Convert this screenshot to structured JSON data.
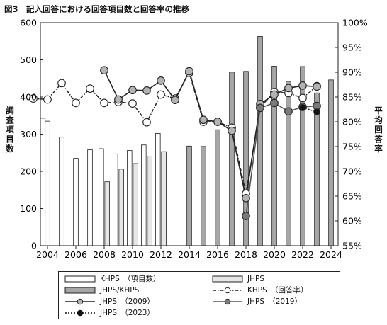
{
  "figure_title": "図3　記入回答における回答項目数と回答率の推移",
  "chart_data": {
    "type": "bar",
    "title": "図3　記入回答における回答項目数と回答率の推移",
    "ylabel_left": "調査項目数",
    "ylabel_right": "平均回答率",
    "ylim_left": [
      0,
      600
    ],
    "ylim_right": [
      55,
      100
    ],
    "xlim": [
      2003.5,
      2024.5
    ],
    "x_ticks": [
      2004,
      2006,
      2008,
      2010,
      2012,
      2014,
      2016,
      2018,
      2020,
      2022,
      2024
    ],
    "y_left_ticks": [
      0,
      100,
      200,
      300,
      400,
      500,
      600
    ],
    "y_right_ticks": [
      "55%",
      "60%",
      "65%",
      "70%",
      "75%",
      "80%",
      "85%",
      "90%",
      "95%",
      "100%"
    ],
    "grid": false,
    "legend_placement": "bottom",
    "bar_series": [
      {
        "name": "KHPS　（項目数）",
        "color": "#ffffff",
        "points": [
          [
            2003,
            343
          ],
          [
            2004,
            335
          ],
          [
            2005,
            292
          ],
          [
            2006,
            235
          ],
          [
            2007,
            258
          ],
          [
            2008,
            261
          ],
          [
            2009,
            247
          ],
          [
            2010,
            256
          ],
          [
            2011,
            271
          ],
          [
            2012,
            302
          ]
        ]
      },
      {
        "name": "JHPS",
        "color": "#e6e6e6",
        "points": [
          [
            2008,
            172
          ],
          [
            2009,
            206
          ],
          [
            2010,
            221
          ],
          [
            2011,
            241
          ],
          [
            2012,
            253
          ]
        ]
      },
      {
        "name": "JHPS/KHPS",
        "color": "#a6a6a6",
        "points": [
          [
            2014,
            268
          ],
          [
            2015,
            267
          ],
          [
            2016,
            312
          ],
          [
            2017,
            467
          ],
          [
            2018,
            469
          ],
          [
            2019,
            563
          ],
          [
            2020,
            483
          ],
          [
            2021,
            442
          ],
          [
            2022,
            482
          ],
          [
            2023,
            411
          ],
          [
            2024,
            446
          ]
        ]
      }
    ],
    "line_series": [
      {
        "name": "KHPS　（回答率）",
        "style": "dashdot",
        "marker": "open",
        "points": [
          [
            2003,
            84.7
          ],
          [
            2004,
            84.5
          ],
          [
            2005,
            87.8
          ],
          [
            2006,
            83.8
          ],
          [
            2007,
            86.7
          ],
          [
            2008,
            83.8
          ],
          [
            2009,
            84.0
          ],
          [
            2010,
            83.7
          ],
          [
            2011,
            79.9
          ],
          [
            2012,
            85.5
          ],
          [
            2013,
            84.7
          ],
          [
            2014,
            89.9
          ],
          [
            2015,
            80.0
          ],
          [
            2016,
            80.0
          ],
          [
            2017,
            78.8
          ],
          [
            2018,
            65.5
          ],
          [
            2019,
            82.9
          ],
          [
            2020,
            86.0
          ],
          [
            2021,
            85.8
          ],
          [
            2022,
            84.8
          ],
          [
            2023,
            87.2
          ]
        ]
      },
      {
        "name": "JHPS　（2009）",
        "style": "solid",
        "marker": "light",
        "points": [
          [
            2008,
            90.4
          ],
          [
            2009,
            84.5
          ],
          [
            2010,
            86.4
          ],
          [
            2011,
            86.3
          ],
          [
            2012,
            88.3
          ],
          [
            2013,
            84.4
          ],
          [
            2014,
            90.2
          ],
          [
            2015,
            80.4
          ],
          [
            2016,
            80.0
          ],
          [
            2017,
            78.2
          ],
          [
            2018,
            64.6
          ],
          [
            2019,
            83.6
          ],
          [
            2020,
            85.5
          ],
          [
            2021,
            86.8
          ],
          [
            2022,
            87.3
          ],
          [
            2023,
            87.1
          ]
        ]
      },
      {
        "name": "JHPS　（2019）",
        "style": "solid",
        "marker": "gray",
        "points": [
          [
            2018,
            61.0
          ],
          [
            2019,
            82.8
          ],
          [
            2020,
            83.8
          ],
          [
            2021,
            82.1
          ],
          [
            2022,
            83.0
          ],
          [
            2023,
            83.2
          ]
        ]
      },
      {
        "name": "JHPS　（2023）",
        "style": "dotted",
        "marker": "black",
        "points": [
          [
            2022,
            82.9
          ],
          [
            2023,
            82.0
          ]
        ]
      }
    ]
  }
}
